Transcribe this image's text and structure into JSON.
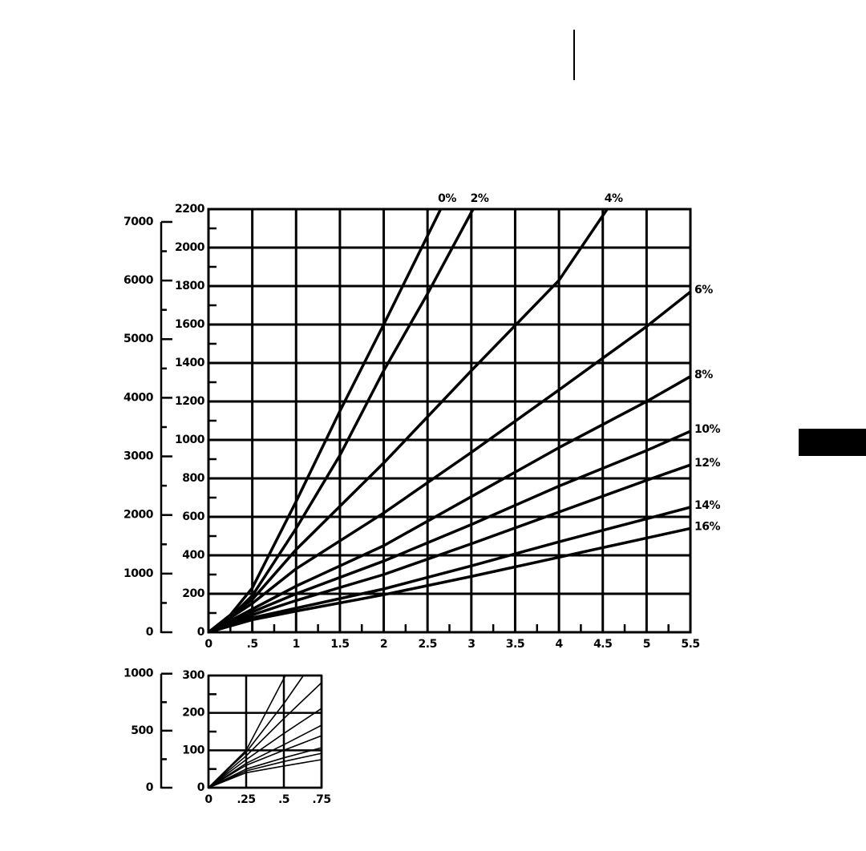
{
  "chart_data": [
    {
      "type": "line",
      "xlim": [
        0,
        5.5
      ],
      "xticks": [
        0,
        {
          "value": 0.5,
          "label": ".5"
        },
        1,
        1.5,
        2,
        2.5,
        3,
        3.5,
        4,
        4.5,
        5,
        5.5
      ],
      "xminorticks": [
        0.25,
        0.75,
        1.25,
        1.75,
        2.25,
        2.75,
        3.25,
        3.75,
        4.25,
        4.75,
        5.25
      ],
      "ylim": [
        0,
        2200
      ],
      "yticks": [
        0,
        200,
        400,
        600,
        800,
        1000,
        1200,
        1400,
        1600,
        1800,
        2000,
        2200
      ],
      "yminorticks": [
        100,
        300,
        500,
        700,
        900,
        1100,
        1300,
        1500,
        1700,
        1900,
        2100
      ],
      "y2lim": [
        0,
        7218
      ],
      "y2ticks": [
        0,
        1000,
        2000,
        3000,
        4000,
        5000,
        6000,
        7000
      ],
      "y2minorticks": [
        500,
        1500,
        2500,
        3500,
        4500,
        5500,
        6500
      ],
      "grid": true,
      "series": [
        {
          "name": "0%",
          "color": "#000000",
          "x": [
            0,
            0.25,
            0.5,
            1,
            1.5,
            2,
            2.65
          ],
          "values": [
            0,
            90,
            230,
            680,
            1150,
            1600,
            2200
          ]
        },
        {
          "name": "2%",
          "color": "#000000",
          "x": [
            0,
            0.25,
            0.5,
            1,
            1.5,
            2,
            2.5,
            3.02
          ],
          "values": [
            0,
            80,
            190,
            540,
            920,
            1360,
            1760,
            2200
          ]
        },
        {
          "name": "4%",
          "color": "#000000",
          "x": [
            0,
            0.5,
            1,
            2,
            3,
            4,
            4.55
          ],
          "values": [
            0,
            170,
            430,
            880,
            1360,
            1830,
            2200
          ]
        },
        {
          "name": "6%",
          "color": "#000000",
          "x": [
            0,
            0.5,
            1,
            2,
            3,
            4,
            5,
            5.5
          ],
          "values": [
            0,
            150,
            330,
            620,
            935,
            1260,
            1590,
            1770
          ]
        },
        {
          "name": "8%",
          "color": "#000000",
          "x": [
            0,
            0.5,
            1,
            2,
            3,
            4,
            5,
            5.5
          ],
          "values": [
            0,
            120,
            240,
            450,
            705,
            960,
            1200,
            1330
          ]
        },
        {
          "name": "10%",
          "color": "#000000",
          "x": [
            0,
            0.5,
            1,
            2,
            3,
            4,
            5,
            5.5
          ],
          "values": [
            0,
            105,
            200,
            370,
            560,
            760,
            945,
            1045
          ]
        },
        {
          "name": "12%",
          "color": "#000000",
          "x": [
            0,
            0.5,
            1,
            2,
            3,
            4,
            5,
            5.5
          ],
          "values": [
            0,
            90,
            165,
            300,
            460,
            625,
            790,
            870
          ]
        },
        {
          "name": "14%",
          "color": "#000000",
          "x": [
            0,
            0.5,
            1,
            2,
            3,
            4,
            5,
            5.5
          ],
          "values": [
            0,
            75,
            125,
            225,
            345,
            470,
            590,
            650
          ]
        },
        {
          "name": "16%",
          "color": "#000000",
          "x": [
            0,
            0.5,
            1,
            2,
            3,
            4,
            5,
            5.5
          ],
          "values": [
            0,
            65,
            110,
            195,
            290,
            390,
            490,
            540
          ]
        }
      ]
    },
    {
      "type": "line",
      "xlim": [
        0,
        0.75
      ],
      "xticks": [
        0,
        {
          "value": 0.25,
          "label": ".25"
        },
        {
          "value": 0.5,
          "label": ".5"
        },
        {
          "value": 0.75,
          "label": ".75"
        }
      ],
      "ylim": [
        0,
        300
      ],
      "yticks": [
        0,
        100,
        200,
        300
      ],
      "yminorticks": [
        50,
        150,
        250
      ],
      "y2lim": [
        0,
        984
      ],
      "y2ticks": [
        0,
        500,
        1000
      ],
      "y2minorticks": [
        250,
        750
      ],
      "grid": true,
      "series": [
        {
          "color": "#000000",
          "x": [
            0,
            0.25,
            0.51
          ],
          "values": [
            0,
            100,
            300
          ]
        },
        {
          "color": "#000000",
          "x": [
            0,
            0.25,
            0.5,
            0.63
          ],
          "values": [
            0,
            95,
            225,
            300
          ]
        },
        {
          "color": "#000000",
          "x": [
            0,
            0.25,
            0.5,
            0.75
          ],
          "values": [
            0,
            85,
            185,
            281
          ]
        },
        {
          "color": "#000000",
          "x": [
            0,
            0.25,
            0.5,
            0.75
          ],
          "values": [
            0,
            75,
            145,
            212
          ]
        },
        {
          "color": "#000000",
          "x": [
            0,
            0.25,
            0.5,
            0.75
          ],
          "values": [
            0,
            65,
            115,
            167
          ]
        },
        {
          "color": "#000000",
          "x": [
            0,
            0.25,
            0.5,
            0.75
          ],
          "values": [
            0,
            60,
            100,
            139
          ]
        },
        {
          "color": "#000000",
          "x": [
            0,
            0.25,
            0.5,
            0.75
          ],
          "values": [
            0,
            50,
            80,
            107
          ]
        },
        {
          "color": "#000000",
          "x": [
            0,
            0.25,
            0.5,
            0.75
          ],
          "values": [
            0,
            45,
            70,
            92
          ]
        },
        {
          "color": "#000000",
          "x": [
            0,
            0.25,
            0.5,
            0.75
          ],
          "values": [
            0,
            40,
            58,
            75
          ]
        }
      ]
    }
  ]
}
